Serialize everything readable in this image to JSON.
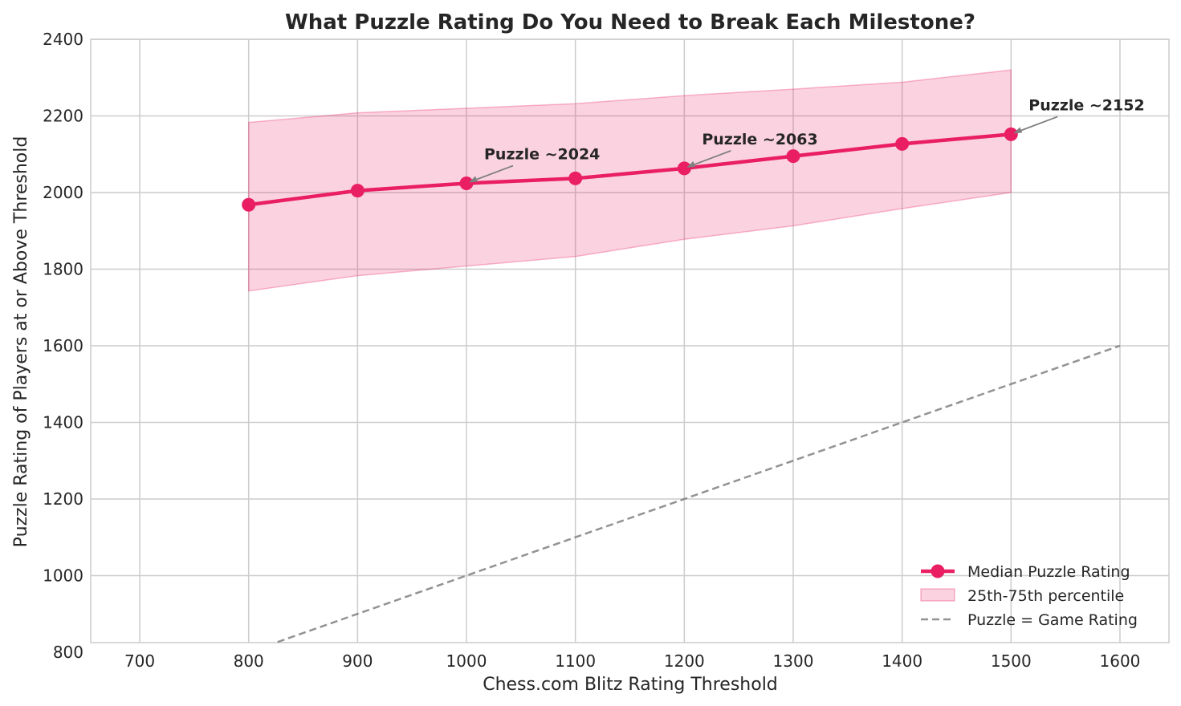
{
  "chart_data": {
    "type": "line",
    "title": "What Puzzle Rating Do You Need to Break Each Milestone?",
    "xlabel": "Chess.com Blitz Rating Threshold",
    "ylabel": "Puzzle Rating of Players at or Above Threshold",
    "xlim": [
      655,
      1645
    ],
    "ylim": [
      825,
      2400
    ],
    "xticks": [
      700,
      800,
      900,
      1000,
      1100,
      1200,
      1300,
      1400,
      1500,
      1600
    ],
    "yticks": [
      800,
      1000,
      1200,
      1400,
      1600,
      1800,
      2000,
      2200,
      2400
    ],
    "grid": true,
    "legend_position": "lower-right",
    "series": [
      {
        "name": "Median Puzzle Rating",
        "kind": "line-markers",
        "color": "#e91e63",
        "x": [
          800,
          900,
          1000,
          1100,
          1200,
          1300,
          1400,
          1500
        ],
        "y": [
          1968,
          2005,
          2024,
          2037,
          2063,
          2095,
          2127,
          2152
        ]
      },
      {
        "name": "25th-75th percentile",
        "kind": "band",
        "color": "#f8bbd0",
        "x": [
          800,
          900,
          1000,
          1100,
          1200,
          1300,
          1400,
          1500
        ],
        "lower": [
          1743,
          1783,
          1808,
          1833,
          1878,
          1913,
          1958,
          2000
        ],
        "upper": [
          2183,
          2208,
          2220,
          2232,
          2253,
          2270,
          2288,
          2320
        ]
      },
      {
        "name": "Puzzle = Game Rating",
        "kind": "dashed-line",
        "color": "#999999",
        "x": [
          700,
          1600
        ],
        "y": [
          700,
          1600
        ]
      }
    ],
    "annotations": [
      {
        "text": "Puzzle ~2024",
        "x": 1000,
        "y": 2024
      },
      {
        "text": "Puzzle ~2063",
        "x": 1200,
        "y": 2063
      },
      {
        "text": "Puzzle ~2152",
        "x": 1500,
        "y": 2152
      }
    ]
  }
}
